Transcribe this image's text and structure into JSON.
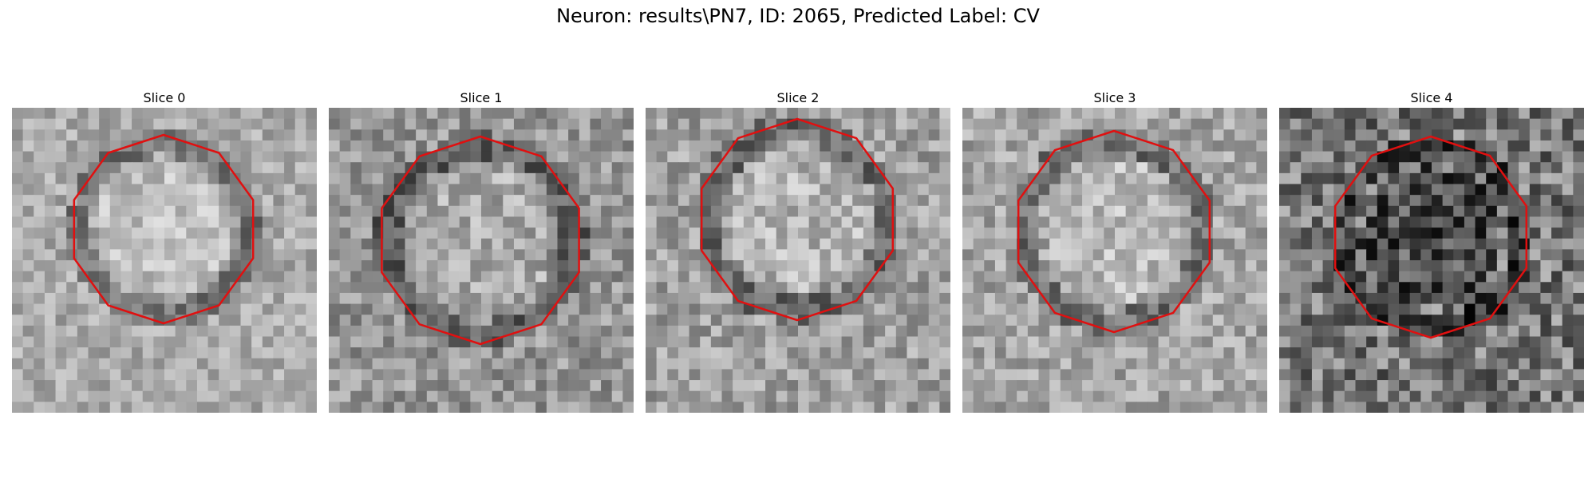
{
  "figure": {
    "title": "Neuron: results\\PN7, ID: 2065, Predicted Label: CV"
  },
  "panels": [
    {
      "title": "Slice 0",
      "contour": "#e01010",
      "seed": 11,
      "mean": 170,
      "spread": 70
    },
    {
      "title": "Slice 1",
      "contour": "#e01010",
      "seed": 23,
      "mean": 150,
      "spread": 85
    },
    {
      "title": "Slice 2",
      "contour": "#e01010",
      "seed": 37,
      "mean": 160,
      "spread": 85
    },
    {
      "title": "Slice 3",
      "contour": "#e01010",
      "seed": 41,
      "mean": 165,
      "spread": 80
    },
    {
      "title": "Slice 4",
      "contour": "#e01010",
      "seed": 53,
      "mean": 120,
      "spread": 130
    }
  ]
}
